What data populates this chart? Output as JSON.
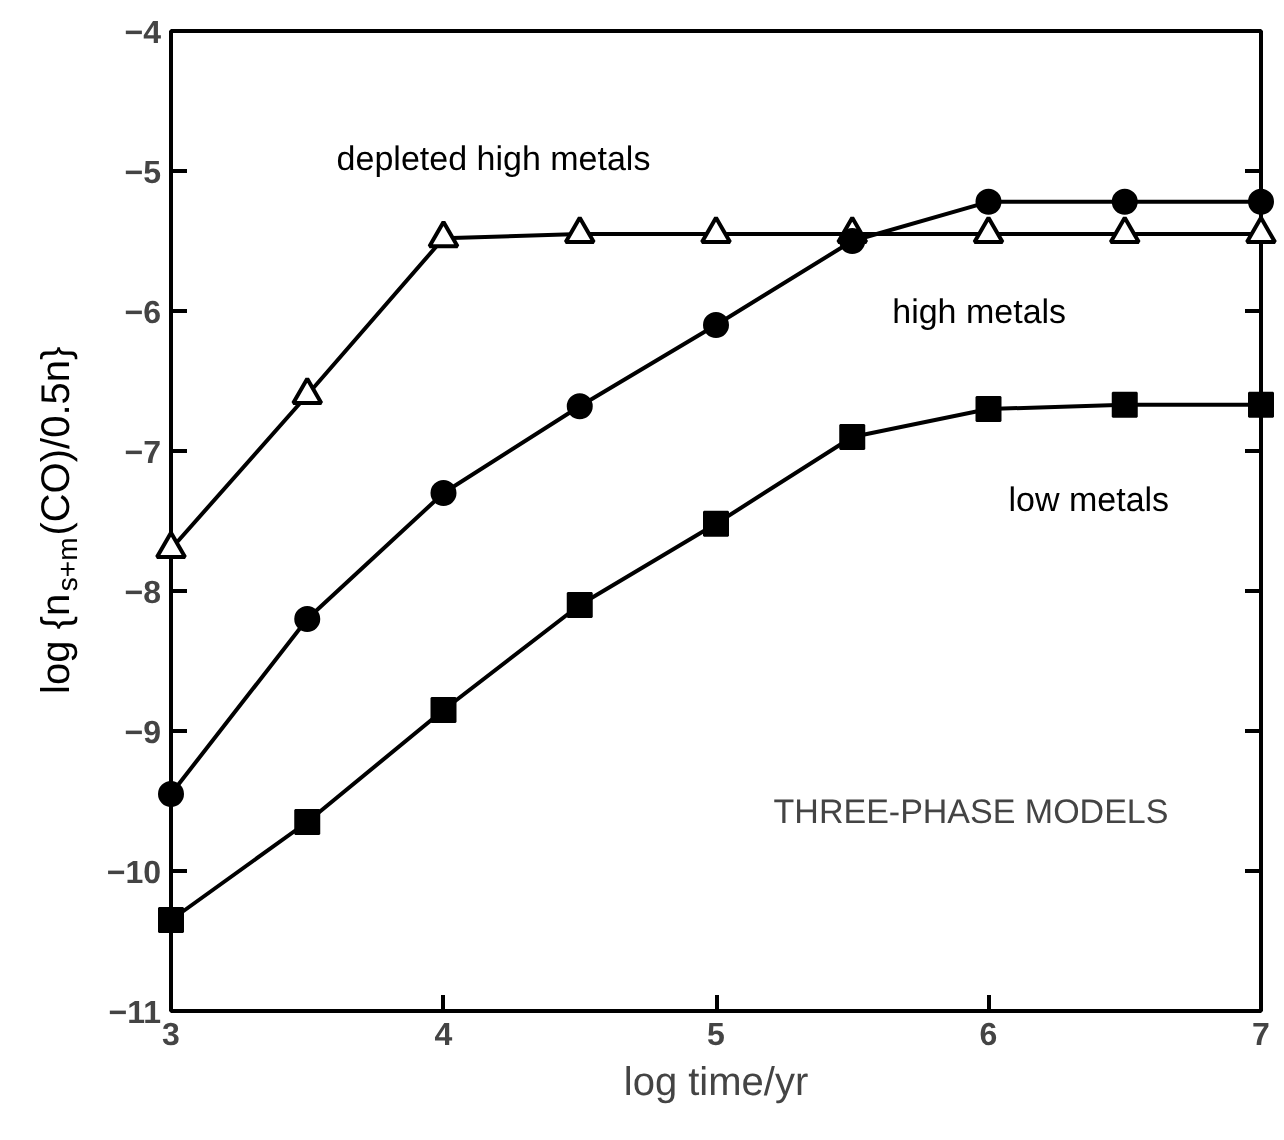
{
  "chart_data": {
    "type": "line",
    "xlabel": "log time/yr",
    "ylabel": "log {n$_{s+m}$(CO)/0.5n}",
    "x": [
      3,
      3.5,
      4,
      4.5,
      5,
      5.5,
      6,
      6.5,
      7
    ],
    "series": [
      {
        "name": "depleted high metals",
        "color": "#000000",
        "marker": "triangle",
        "values": [
          -7.7,
          -6.6,
          -5.48,
          -5.45,
          -5.45,
          -5.45,
          -5.45,
          -5.45,
          -5.45
        ]
      },
      {
        "name": "high metals",
        "color": "#000000",
        "marker": "circle",
        "values": [
          -9.45,
          -8.2,
          -7.3,
          -6.68,
          -6.1,
          -5.5,
          -5.22,
          -5.22,
          -5.22
        ]
      },
      {
        "name": "low metals",
        "color": "#000000",
        "marker": "square",
        "values": [
          -10.35,
          -9.65,
          -8.85,
          -8.1,
          -7.52,
          -6.9,
          -6.7,
          -6.67,
          -6.67
        ]
      }
    ],
    "annotations": [
      "THREE-PHASE MODELS"
    ],
    "xlim": [
      3,
      7
    ],
    "ylim": [
      -11,
      -4
    ],
    "xticks": [
      3,
      4,
      5,
      6,
      7
    ],
    "yticks": [
      -11,
      -10,
      -9,
      -8,
      -7,
      -6,
      -5,
      -4
    ],
    "grid": false,
    "line_style": "solid"
  }
}
